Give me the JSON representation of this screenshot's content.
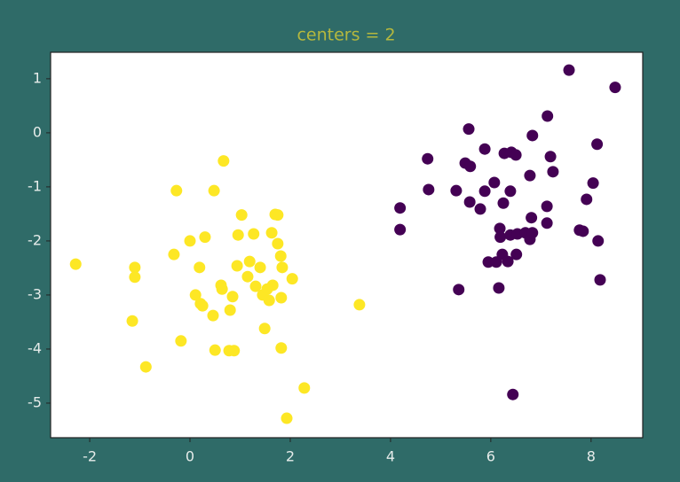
{
  "chart_data": {
    "type": "scatter",
    "title": "centers = 2",
    "xlim": [
      -2.78,
      9.03
    ],
    "ylim": [
      -5.64,
      1.49
    ],
    "xticks": [
      -2,
      0,
      2,
      4,
      6,
      8
    ],
    "yticks": [
      1,
      0,
      -1,
      -2,
      -3,
      -4,
      -5
    ],
    "grid": false,
    "series": [
      {
        "color": "#fde725",
        "x": [
          -2.28,
          -1.1,
          -1.1,
          -1.15,
          -0.88,
          -0.27,
          -0.32,
          -0.18,
          0,
          0.11,
          0.19,
          0.21,
          0.3,
          0.25,
          0.46,
          0.5,
          0.48,
          0.67,
          0.62,
          0.64,
          0.78,
          0.88,
          0.8,
          0.85,
          0.94,
          0.96,
          1.03,
          1.15,
          1.19,
          1.27,
          1.31,
          1.4,
          1.45,
          1.49,
          1.58,
          1.63,
          1.65,
          1.7,
          1.75,
          1.75,
          1.81,
          1.82,
          1.84,
          1.82,
          2.04,
          1.93,
          2.28,
          3.38,
          1.54
        ],
        "values": [
          -2.43,
          -2.49,
          -2.67,
          -3.48,
          -4.33,
          -1.07,
          -2.25,
          -3.85,
          -2.0,
          -3.0,
          -2.49,
          -3.16,
          -1.93,
          -3.2,
          -3.38,
          -4.02,
          -1.07,
          -0.52,
          -2.82,
          -2.89,
          -4.03,
          -4.03,
          -3.28,
          -3.03,
          -2.46,
          -1.89,
          -1.52,
          -2.66,
          -2.38,
          -1.87,
          -2.84,
          -2.49,
          -3.0,
          -3.62,
          -3.1,
          -1.85,
          -2.82,
          -1.51,
          -1.52,
          -2.05,
          -2.28,
          -3.05,
          -2.49,
          -3.98,
          -2.7,
          -5.28,
          -4.72,
          -3.18,
          -2.89
        ]
      },
      {
        "color": "#440154",
        "x": [
          7.56,
          8.48,
          5.56,
          7.13,
          8.12,
          4.74,
          5.88,
          6.27,
          6.41,
          6.5,
          5.49,
          5.59,
          7.19,
          6.83,
          4.76,
          5.31,
          5.88,
          6.07,
          6.39,
          6.25,
          5.58,
          5.79,
          6.78,
          7.24,
          8.04,
          7.91,
          4.19,
          4.19,
          6.18,
          6.81,
          7.12,
          7.12,
          6.19,
          6.39,
          6.53,
          6.69,
          6.78,
          6.83,
          6.23,
          5.95,
          6.11,
          6.34,
          6.51,
          6.16,
          5.36,
          6.44,
          7.77,
          7.84,
          8.14,
          8.18
        ],
        "values": [
          1.16,
          0.84,
          0.07,
          0.31,
          -0.21,
          -0.48,
          -0.3,
          -0.38,
          -0.36,
          -0.41,
          -0.56,
          -0.62,
          -0.44,
          -0.05,
          -1.05,
          -1.07,
          -1.08,
          -0.92,
          -1.08,
          -1.3,
          -1.28,
          -1.41,
          -0.79,
          -0.72,
          -0.93,
          -1.23,
          -1.39,
          -1.79,
          -1.77,
          -1.57,
          -1.36,
          -1.67,
          -1.93,
          -1.89,
          -1.87,
          -1.85,
          -1.97,
          -1.85,
          -2.25,
          -2.39,
          -2.39,
          -2.38,
          -2.25,
          -2.87,
          -2.9,
          -4.84,
          -1.8,
          -1.82,
          -2.0,
          -2.72
        ]
      }
    ]
  }
}
